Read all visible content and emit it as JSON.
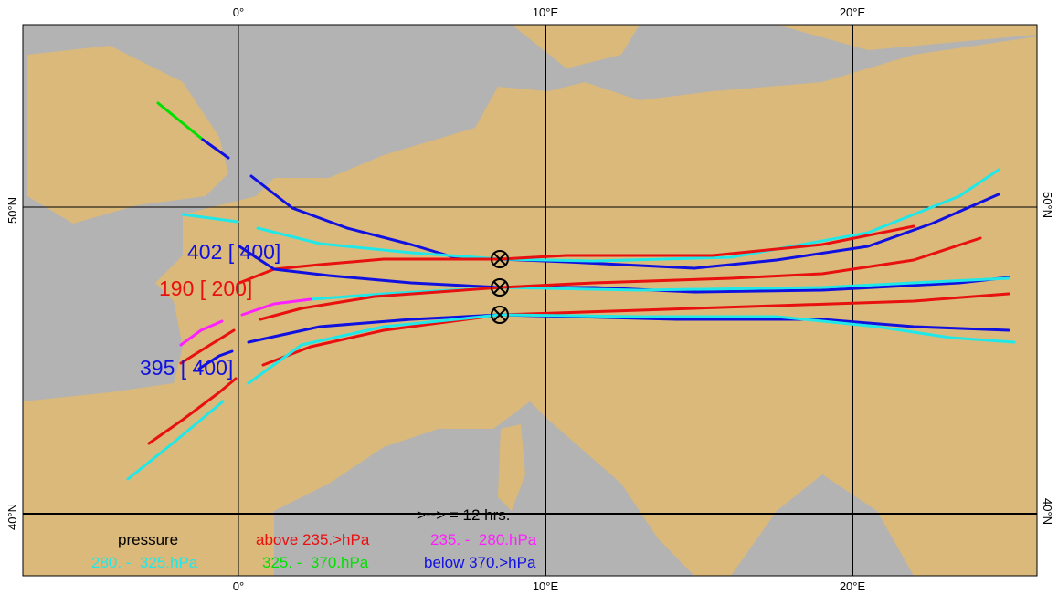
{
  "map": {
    "lon_labels_top": [
      "0°",
      "10°E",
      "20°E"
    ],
    "lon_labels_bottom": [
      "0°",
      "10°E",
      "20°E"
    ],
    "lat_labels_left": [
      "50°N",
      "40°N"
    ],
    "lat_labels_right": [
      "50°N",
      "40°N"
    ],
    "trajectory_labels": [
      "402 [ 400]",
      "190 [ 200]",
      "395 [ 400]"
    ],
    "legend": {
      "interval": ">--> = 12 hrs.",
      "title": "pressure",
      "items": [
        "above 235.>hPa",
        "235. -  280.hPa",
        "280. -  325.hPa",
        "325. -  370.hPa",
        "below 370.>hPa"
      ]
    }
  }
}
